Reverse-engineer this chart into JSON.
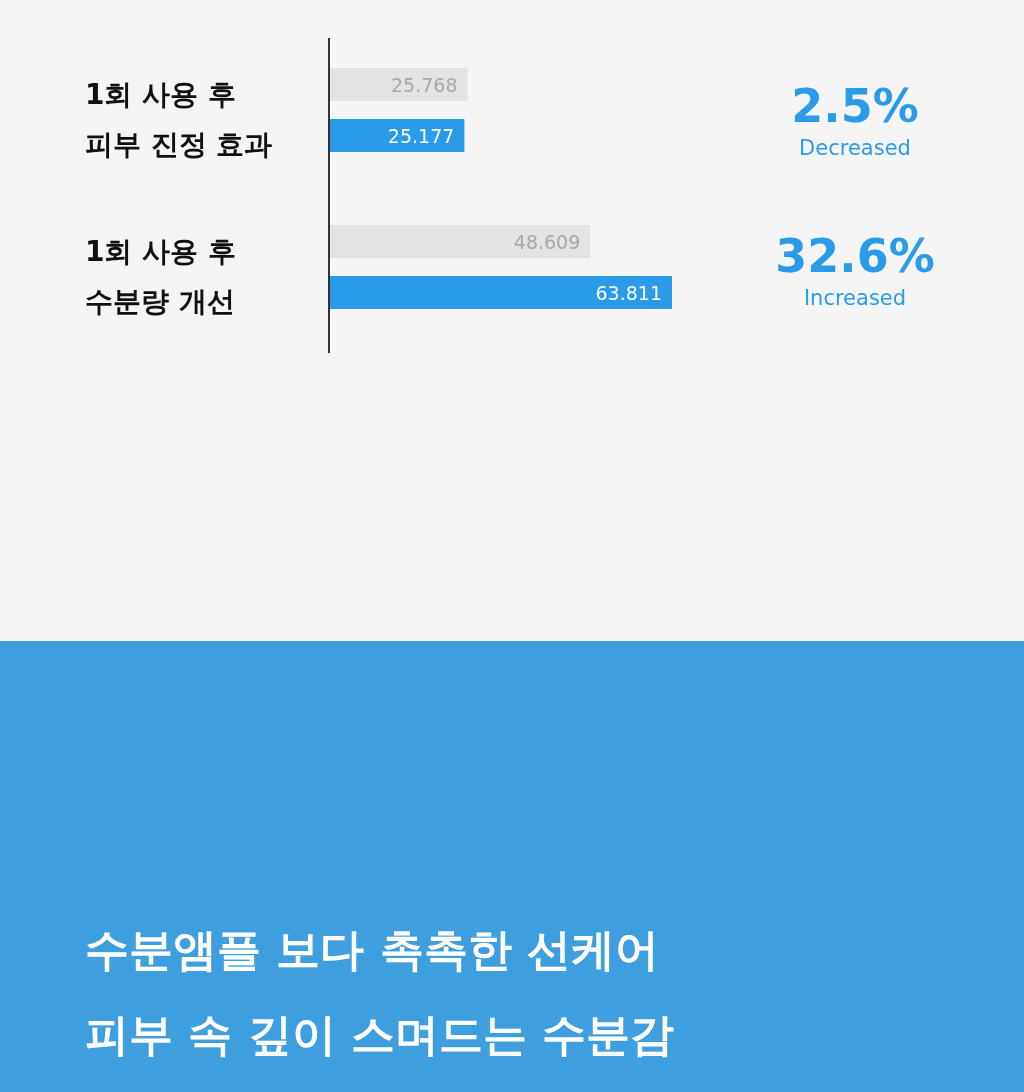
{
  "chart_data": {
    "type": "bar",
    "orientation": "horizontal",
    "data_labels": true,
    "categories": [
      "1회 사용 후\n피부 진정 효과",
      "1회 사용 후\n수분량 개선"
    ],
    "series": [
      {
        "color": "#e3e3e3",
        "values": [
          25.768,
          48.609
        ]
      },
      {
        "color": "#2a9be8",
        "values": [
          25.177,
          63.811
        ]
      }
    ],
    "annotations": [
      "2.5%",
      "Decreased",
      "32.6%",
      "Increased",
      "수분앰플 보다 촉촉한 선케어",
      "피부 속 깊이 스며드는 수분감"
    ]
  }
}
